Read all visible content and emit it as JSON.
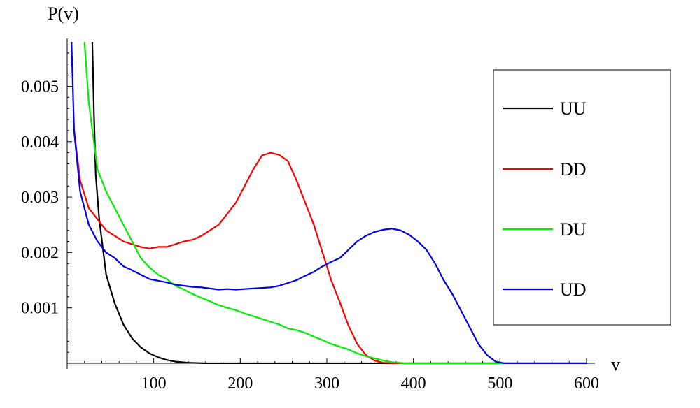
{
  "chart_data": {
    "type": "line",
    "xlabel": "v",
    "ylabel": "P(v)",
    "xlim": [
      0,
      600
    ],
    "ylim": [
      0,
      0.0058
    ],
    "x_ticks": [
      100,
      200,
      300,
      400,
      500,
      600
    ],
    "x_tick_labels": [
      "100",
      "200",
      "300",
      "400",
      "500",
      "600"
    ],
    "y_ticks": [
      0.001,
      0.002,
      0.003,
      0.004,
      0.005
    ],
    "y_tick_labels": [
      "0.001",
      "0.002",
      "0.003",
      "0.004",
      "0.005"
    ],
    "grid": false,
    "legend_position": "right",
    "series": [
      {
        "name": "UU",
        "color": "#000000",
        "points": [
          [
            29,
            0.0058
          ],
          [
            31,
            0.0045
          ],
          [
            33,
            0.0034
          ],
          [
            37,
            0.0026
          ],
          [
            45,
            0.0016
          ],
          [
            55,
            0.00108
          ],
          [
            65,
            0.0007
          ],
          [
            75,
            0.00045
          ],
          [
            85,
            0.00029
          ],
          [
            95,
            0.00018
          ],
          [
            105,
            0.00011
          ],
          [
            115,
            6e-05
          ],
          [
            125,
            3e-05
          ],
          [
            140,
            1e-05
          ],
          [
            160,
            0.0
          ],
          [
            250,
            0.0
          ],
          [
            400,
            0.0
          ],
          [
            600,
            0.0
          ]
        ]
      },
      {
        "name": "DD",
        "color": "#ff0000",
        "points": [
          [
            8,
            0.0042
          ],
          [
            15,
            0.0033
          ],
          [
            25,
            0.0028
          ],
          [
            35,
            0.0026
          ],
          [
            45,
            0.0024
          ],
          [
            55,
            0.0023
          ],
          [
            65,
            0.0022
          ],
          [
            75,
            0.00215
          ],
          [
            85,
            0.0021
          ],
          [
            95,
            0.00207
          ],
          [
            105,
            0.0021
          ],
          [
            115,
            0.0021
          ],
          [
            125,
            0.00215
          ],
          [
            135,
            0.0022
          ],
          [
            145,
            0.00223
          ],
          [
            155,
            0.0023
          ],
          [
            165,
            0.0024
          ],
          [
            175,
            0.0025
          ],
          [
            185,
            0.0027
          ],
          [
            195,
            0.0029
          ],
          [
            205,
            0.0032
          ],
          [
            215,
            0.0035
          ],
          [
            225,
            0.00375
          ],
          [
            235,
            0.0038
          ],
          [
            245,
            0.00376
          ],
          [
            255,
            0.00365
          ],
          [
            265,
            0.0033
          ],
          [
            275,
            0.0029
          ],
          [
            285,
            0.0025
          ],
          [
            295,
            0.002
          ],
          [
            305,
            0.0015
          ],
          [
            315,
            0.0011
          ],
          [
            325,
            0.00068
          ],
          [
            335,
            0.00035
          ],
          [
            345,
            0.00015
          ],
          [
            355,
            5e-05
          ],
          [
            365,
            1e-05
          ],
          [
            380,
            0.0
          ],
          [
            600,
            0.0
          ]
        ]
      },
      {
        "name": "DU",
        "color": "#00ee00",
        "points": [
          [
            20,
            0.0058
          ],
          [
            25,
            0.0047
          ],
          [
            35,
            0.0035
          ],
          [
            45,
            0.0031
          ],
          [
            55,
            0.0028
          ],
          [
            65,
            0.0025
          ],
          [
            75,
            0.0022
          ],
          [
            85,
            0.0019
          ],
          [
            95,
            0.00173
          ],
          [
            105,
            0.0016
          ],
          [
            115,
            0.00152
          ],
          [
            125,
            0.0014
          ],
          [
            135,
            0.00133
          ],
          [
            145,
            0.00125
          ],
          [
            155,
            0.00118
          ],
          [
            165,
            0.00112
          ],
          [
            175,
            0.00105
          ],
          [
            185,
            0.001
          ],
          [
            195,
            0.00096
          ],
          [
            205,
            0.0009
          ],
          [
            215,
            0.00085
          ],
          [
            225,
            0.0008
          ],
          [
            235,
            0.00075
          ],
          [
            245,
            0.0007
          ],
          [
            255,
            0.00063
          ],
          [
            265,
            0.0006
          ],
          [
            275,
            0.00055
          ],
          [
            285,
            0.00048
          ],
          [
            295,
            0.00042
          ],
          [
            305,
            0.00035
          ],
          [
            315,
            0.0003
          ],
          [
            325,
            0.00025
          ],
          [
            335,
            0.00018
          ],
          [
            345,
            0.00013
          ],
          [
            355,
            9e-05
          ],
          [
            365,
            5e-05
          ],
          [
            375,
            2e-05
          ],
          [
            390,
            0.0
          ],
          [
            600,
            0.0
          ]
        ]
      },
      {
        "name": "UD",
        "color": "#0000ee",
        "points": [
          [
            5,
            0.0058
          ],
          [
            8,
            0.0042
          ],
          [
            15,
            0.0031
          ],
          [
            25,
            0.0025
          ],
          [
            35,
            0.0022
          ],
          [
            45,
            0.002
          ],
          [
            55,
            0.0019
          ],
          [
            65,
            0.00175
          ],
          [
            75,
            0.00168
          ],
          [
            85,
            0.0016
          ],
          [
            95,
            0.00152
          ],
          [
            105,
            0.00149
          ],
          [
            115,
            0.00146
          ],
          [
            125,
            0.00142
          ],
          [
            135,
            0.0014
          ],
          [
            145,
            0.00138
          ],
          [
            155,
            0.00137
          ],
          [
            165,
            0.00135
          ],
          [
            175,
            0.00133
          ],
          [
            185,
            0.00134
          ],
          [
            195,
            0.00133
          ],
          [
            205,
            0.00134
          ],
          [
            215,
            0.00135
          ],
          [
            225,
            0.00136
          ],
          [
            235,
            0.00137
          ],
          [
            245,
            0.0014
          ],
          [
            255,
            0.00145
          ],
          [
            265,
            0.0015
          ],
          [
            275,
            0.00158
          ],
          [
            285,
            0.00165
          ],
          [
            295,
            0.00175
          ],
          [
            305,
            0.00183
          ],
          [
            315,
            0.0019
          ],
          [
            325,
            0.00205
          ],
          [
            335,
            0.0022
          ],
          [
            345,
            0.0023
          ],
          [
            355,
            0.00237
          ],
          [
            365,
            0.00241
          ],
          [
            375,
            0.00243
          ],
          [
            385,
            0.0024
          ],
          [
            395,
            0.00232
          ],
          [
            405,
            0.0022
          ],
          [
            415,
            0.00205
          ],
          [
            425,
            0.0018
          ],
          [
            435,
            0.0015
          ],
          [
            445,
            0.00125
          ],
          [
            455,
            0.00095
          ],
          [
            465,
            0.00065
          ],
          [
            475,
            0.00035
          ],
          [
            485,
            0.00015
          ],
          [
            495,
            3e-05
          ],
          [
            505,
            0.0
          ],
          [
            600,
            0.0
          ]
        ]
      }
    ]
  }
}
